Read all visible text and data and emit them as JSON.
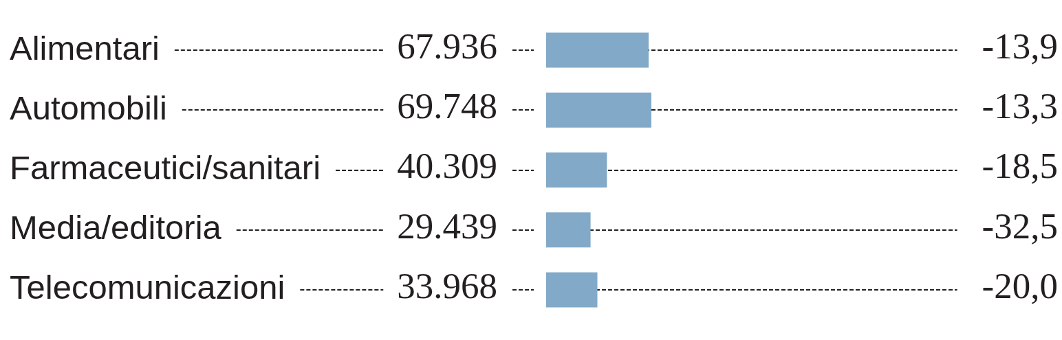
{
  "chart_data": {
    "type": "bar",
    "orientation": "horizontal",
    "tick_labels": "y",
    "grid": "y",
    "categories": [
      "Alimentari",
      "Automobili",
      "Farmaceutici/sanitari",
      "Media/editoria",
      "Telecomunicazioni"
    ],
    "values": [
      67936,
      69748,
      40309,
      29439,
      33968
    ],
    "value_labels": [
      "67.936",
      "69.748",
      "40.309",
      "29.439",
      "33.968"
    ],
    "color": "#82a9c7",
    "annotations": [
      "-13,9",
      "-13,3",
      "-18,5",
      "-32,5",
      "-20,0"
    ]
  }
}
